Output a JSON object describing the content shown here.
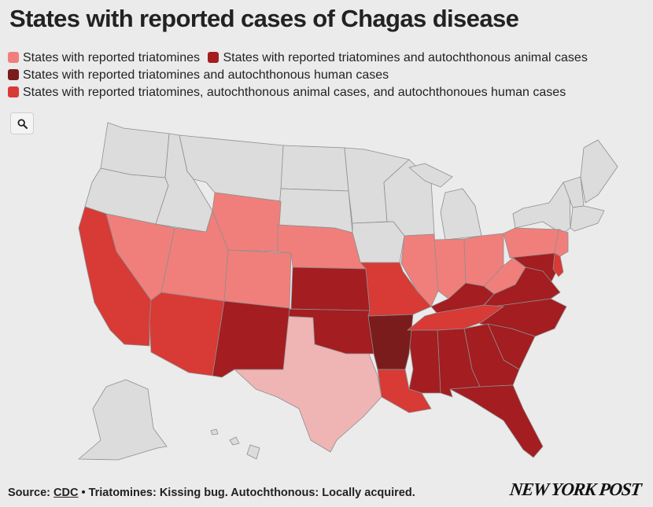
{
  "title": "States with reported cases of Chagas disease",
  "legend": {
    "items": [
      {
        "label": "States with reported triatomines",
        "color": "#f07f7b"
      },
      {
        "label": "States with reported triatomines and autochthonous animal cases",
        "color": "#a31d21"
      },
      {
        "label": "States with reported triatomines and autochthonous human cases",
        "color": "#7a1c1c"
      },
      {
        "label": "States with reported triatomines, autochthonous animal cases, and autochthonoues human cases",
        "color": "#d83a36"
      }
    ]
  },
  "map": {
    "zoom_icon": "search-icon",
    "colors": {
      "none": "#dcdcdc",
      "triatomines": "#f07f7b",
      "triatomines_animal": "#a31d21",
      "triatomines_human": "#7a1c1c",
      "all": "#d83a36",
      "texas": "#efb4b4"
    }
  },
  "footer": {
    "source_prefix": "Source: ",
    "source_link": "CDC",
    "note": " • Triatomines: Kissing bug. Autochthonous: Locally acquired."
  },
  "logo": "NEW YORK POST"
}
